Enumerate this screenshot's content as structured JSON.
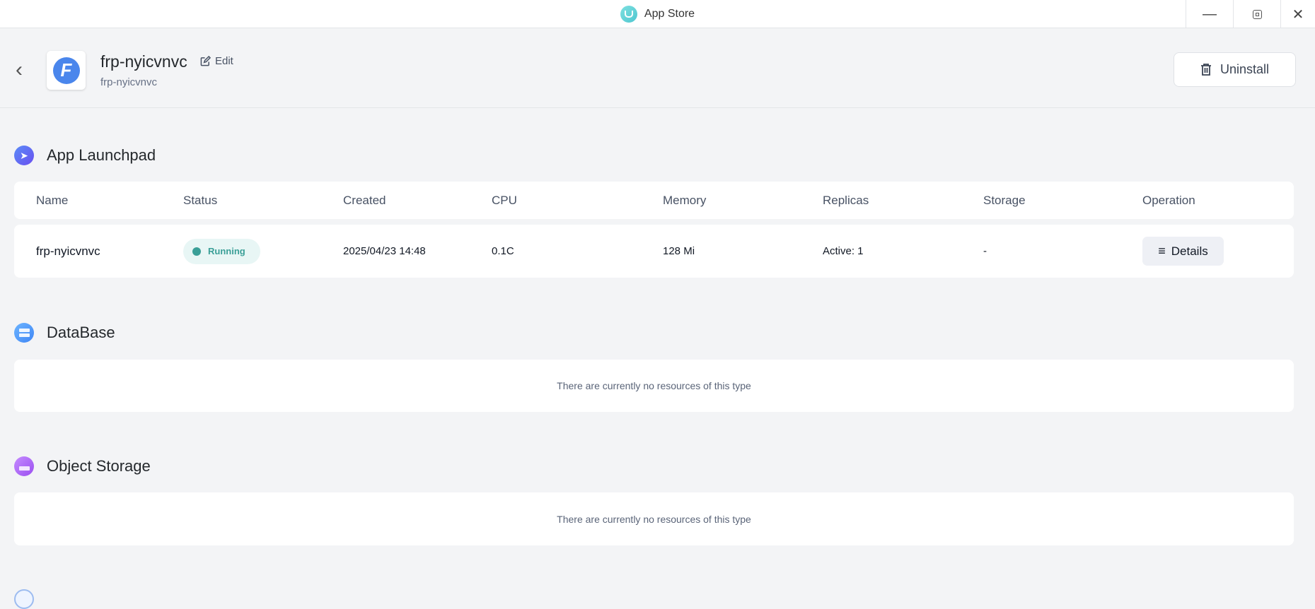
{
  "window": {
    "title": "App Store",
    "buttons": [
      "minimize",
      "restore",
      "close"
    ]
  },
  "header": {
    "app_name": "frp-nyicvnvc",
    "edit_label": "Edit",
    "subtitle": "frp-nyicvnvc",
    "uninstall_label": "Uninstall"
  },
  "launchpad": {
    "title": "App Launchpad",
    "columns": [
      "Name",
      "Status",
      "Created",
      "CPU",
      "Memory",
      "Replicas",
      "Storage",
      "Operation"
    ],
    "rows": [
      {
        "name": "frp-nyicvnvc",
        "status": "Running",
        "created": "2025/04/23 14:48",
        "cpu": "0.1C",
        "memory": "128 Mi",
        "replicas": "Active: 1",
        "storage": "-",
        "operation": "Details"
      }
    ],
    "status_color": "#3a9f97"
  },
  "database": {
    "title": "DataBase",
    "empty": "There are currently no resources of this type"
  },
  "object_storage": {
    "title": "Object Storage",
    "empty": "There are currently no resources of this type"
  }
}
